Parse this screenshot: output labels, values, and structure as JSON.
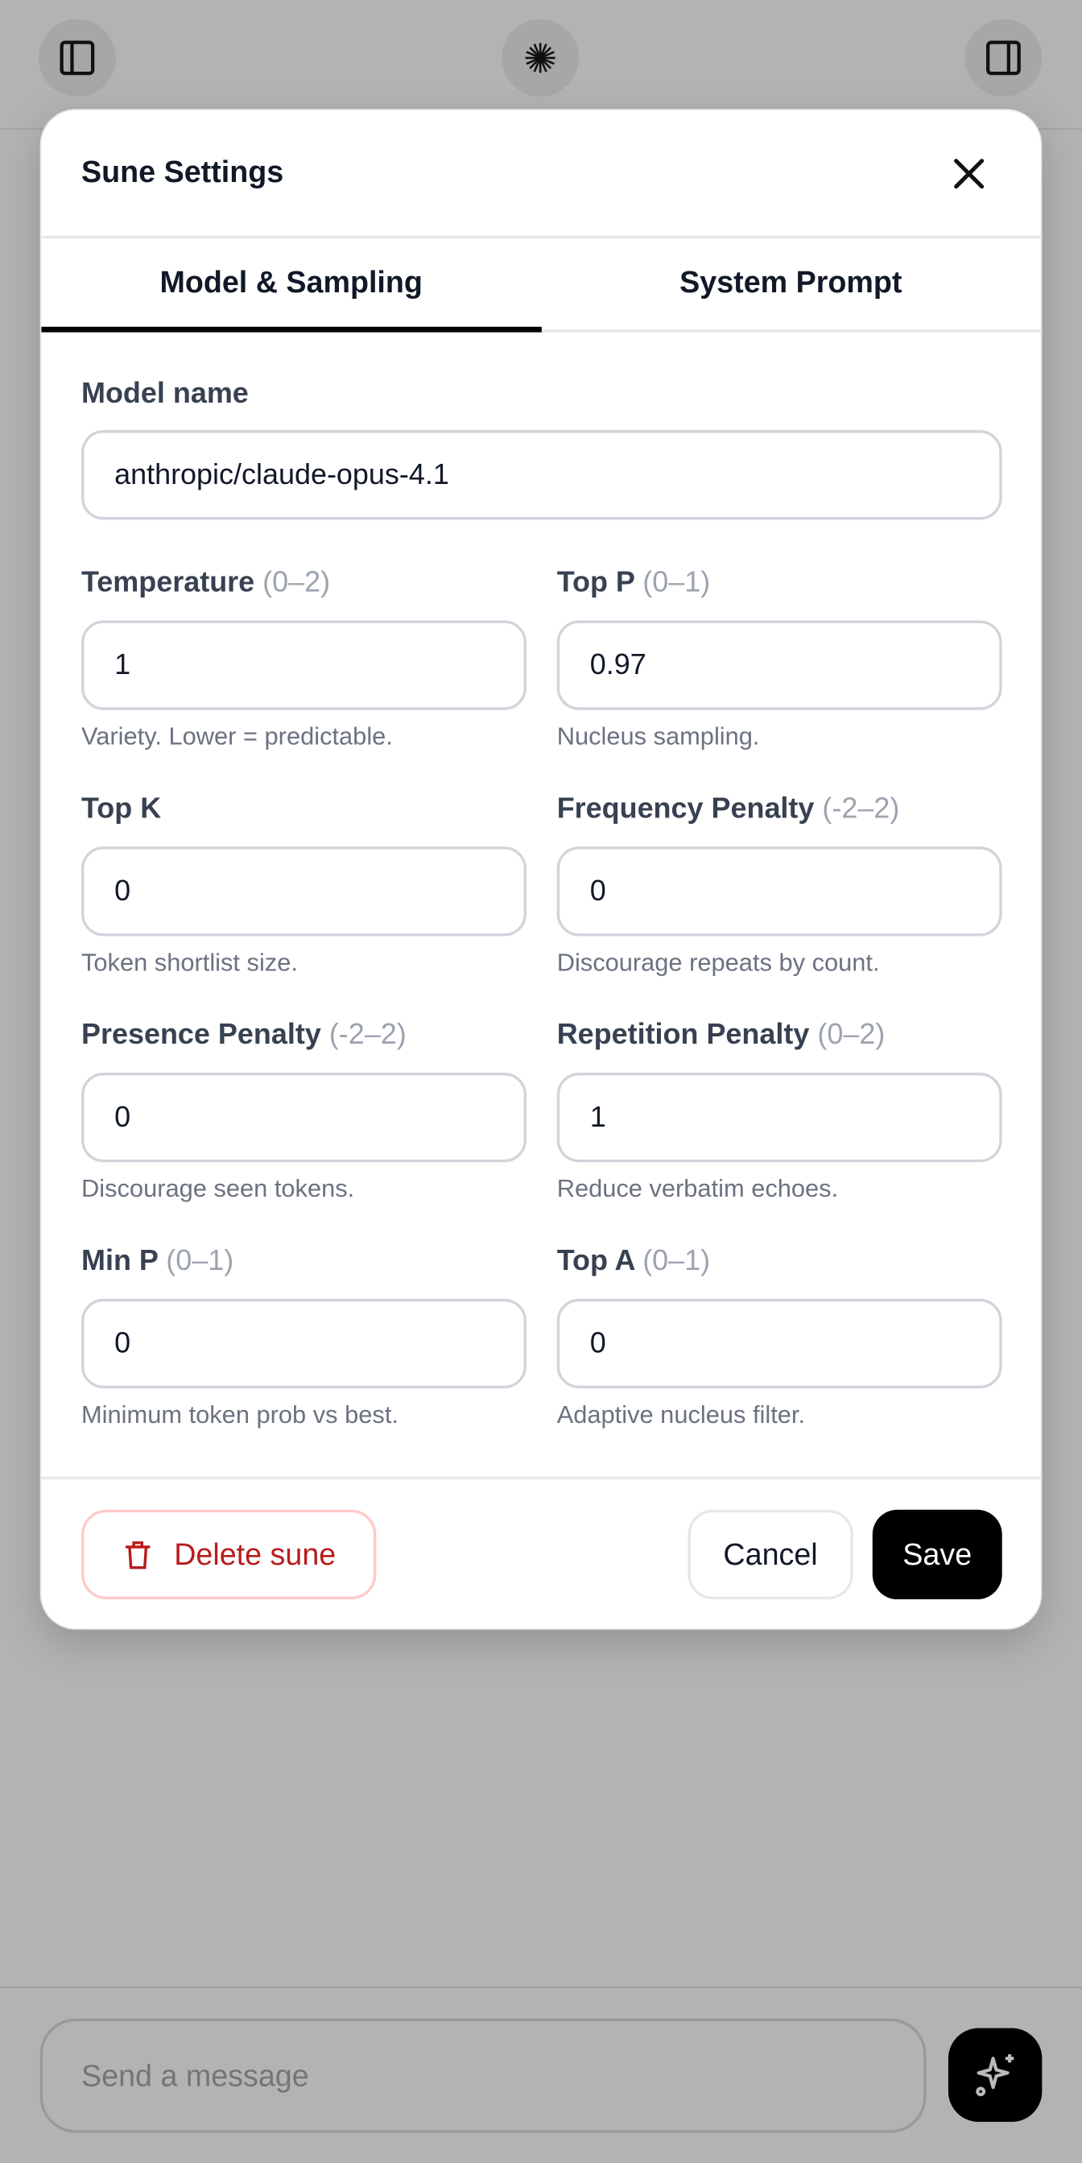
{
  "topbar": {
    "left_icon": "sidebar-left-icon",
    "center_icon": "sparkburst-icon",
    "right_icon": "sidebar-right-icon"
  },
  "modal": {
    "title": "Sune Settings",
    "tabs": [
      {
        "label": "Model & Sampling",
        "active": true
      },
      {
        "label": "System Prompt",
        "active": false
      }
    ],
    "model": {
      "label": "Model name",
      "value": "anthropic/claude-opus-4.1"
    },
    "fields": [
      {
        "label": "Temperature",
        "range": "(0–2)",
        "value": "1",
        "help": "Variety. Lower = predictable."
      },
      {
        "label": "Top P",
        "range": "(0–1)",
        "value": "0.97",
        "help": "Nucleus sampling."
      },
      {
        "label": "Top K",
        "range": "",
        "value": "0",
        "help": "Token shortlist size."
      },
      {
        "label": "Frequency Penalty",
        "range": "(-2–2)",
        "value": "0",
        "help": "Discourage repeats by count."
      },
      {
        "label": "Presence Penalty",
        "range": "(-2–2)",
        "value": "0",
        "help": "Discourage seen tokens."
      },
      {
        "label": "Repetition Penalty",
        "range": "(0–2)",
        "value": "1",
        "help": "Reduce verbatim echoes."
      },
      {
        "label": "Min P",
        "range": "(0–1)",
        "value": "0",
        "help": "Minimum token prob vs best."
      },
      {
        "label": "Top A",
        "range": "(0–1)",
        "value": "0",
        "help": "Adaptive nucleus filter."
      }
    ],
    "delete_label": "Delete sune",
    "cancel_label": "Cancel",
    "save_label": "Save"
  },
  "composer": {
    "placeholder": "Send a message",
    "send_icon": "sparkles-icon"
  },
  "colors": {
    "danger": "#b91c1c",
    "primary": "#000000",
    "overlay": "#b3b3b3"
  }
}
